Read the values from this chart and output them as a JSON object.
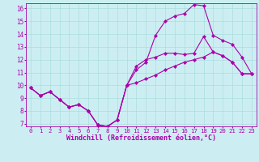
{
  "background_color": "#cceef2",
  "grid_color": "#aadddd",
  "line_color": "#aa00aa",
  "marker": "D",
  "markersize": 2.2,
  "linewidth": 0.8,
  "xlim": [
    -0.5,
    23.5
  ],
  "ylim": [
    6.8,
    16.4
  ],
  "xlabel": "Windchill (Refroidissement éolien,°C)",
  "xlabel_fontsize": 6.0,
  "xtick_fontsize": 5.2,
  "ytick_fontsize": 5.5,
  "xticks": [
    0,
    1,
    2,
    3,
    4,
    5,
    6,
    7,
    8,
    9,
    10,
    11,
    12,
    13,
    14,
    15,
    16,
    17,
    18,
    19,
    20,
    21,
    22,
    23
  ],
  "yticks": [
    7,
    8,
    9,
    10,
    11,
    12,
    13,
    14,
    15,
    16
  ],
  "series": [
    [
      9.8,
      9.2,
      9.5,
      8.9,
      8.3,
      8.5,
      8.0,
      6.9,
      6.8,
      7.3,
      10.0,
      11.5,
      12.0,
      12.2,
      12.5,
      12.5,
      12.4,
      12.5,
      13.8,
      12.6,
      12.3,
      11.8,
      10.9,
      10.9
    ],
    [
      9.8,
      9.2,
      9.5,
      8.9,
      8.3,
      8.5,
      8.0,
      6.9,
      6.8,
      7.3,
      10.0,
      11.2,
      11.8,
      13.9,
      15.0,
      15.4,
      15.6,
      16.3,
      16.2,
      13.9,
      13.5,
      13.2,
      12.2,
      10.9
    ],
    [
      9.8,
      9.2,
      9.5,
      8.9,
      8.3,
      8.5,
      8.0,
      6.9,
      6.8,
      7.3,
      10.0,
      10.2,
      10.5,
      10.8,
      11.2,
      11.5,
      11.8,
      12.0,
      12.2,
      12.6,
      12.3,
      11.8,
      10.9,
      10.9
    ]
  ]
}
